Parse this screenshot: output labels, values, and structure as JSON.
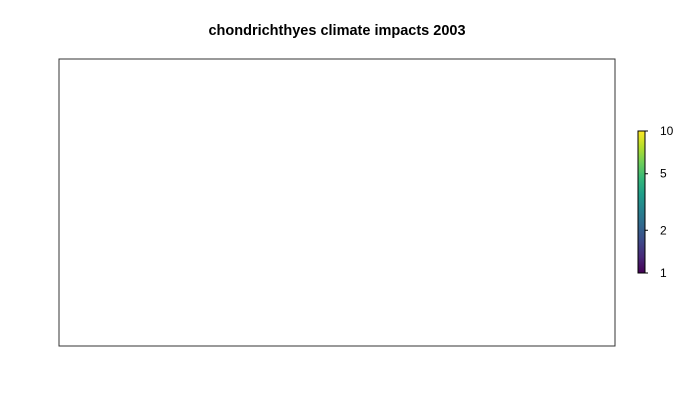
{
  "chart_data": {
    "type": "heatmap",
    "title": "chondrichthyes climate impacts 2003",
    "xlabel": "",
    "ylabel": "",
    "grid": false,
    "values": [],
    "colorbar": {
      "scale": "log",
      "range": [
        1,
        10
      ],
      "ticks": [
        1,
        2,
        5,
        10
      ],
      "tick_labels": [
        "1",
        "2",
        "5",
        "10"
      ],
      "palette": [
        "#440154",
        "#482878",
        "#3e4989",
        "#31688e",
        "#26828e",
        "#1f9e89",
        "#35b779",
        "#6ece58",
        "#b5de2b",
        "#fde725"
      ],
      "placement": "right"
    }
  }
}
